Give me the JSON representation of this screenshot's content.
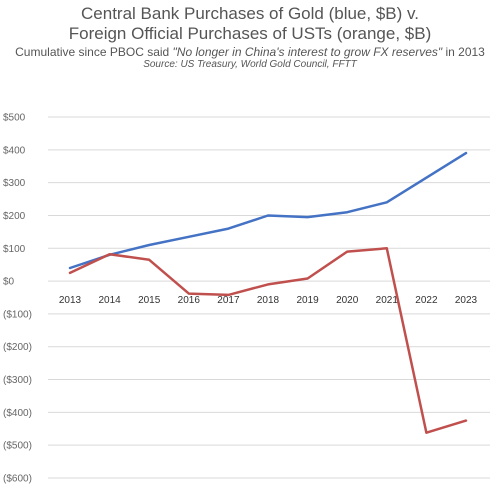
{
  "chart_data": {
    "type": "line",
    "title": [
      "Central Bank Purchases of Gold (blue, $B) v.",
      "Foreign Official Purchases of USTs (orange, $B)"
    ],
    "subtitle": {
      "prefix": "Cumulative since PBOC said ",
      "quote": "\"No longer in China's interest to grow FX reserves\"",
      "suffix": " in 2013"
    },
    "source": "Source: US Treasury, World Gold Council, FFTT",
    "x": [
      "2013",
      "2014",
      "2015",
      "2016",
      "2017",
      "2018",
      "2019",
      "2020",
      "2021",
      "2022",
      "2023"
    ],
    "ylim": [
      -600,
      500
    ],
    "yticks": [
      500,
      400,
      300,
      200,
      100,
      0,
      -100,
      -200,
      -300,
      -400,
      -500,
      -600
    ],
    "ytick_labels": [
      "$500",
      "$400",
      "$300",
      "$200",
      "$100",
      "$0",
      "($100)",
      "($200)",
      "($300)",
      "($400)",
      "($500)",
      "($600)"
    ],
    "grid": true,
    "series": [
      {
        "color": "#4472c4",
        "values": [
          40,
          80,
          110,
          135,
          160,
          200,
          195,
          210,
          240,
          315,
          390
        ]
      },
      {
        "color": "#c0504d",
        "values": [
          25,
          82,
          65,
          -38,
          -42,
          -10,
          8,
          90,
          100,
          -462,
          -425
        ]
      }
    ]
  }
}
